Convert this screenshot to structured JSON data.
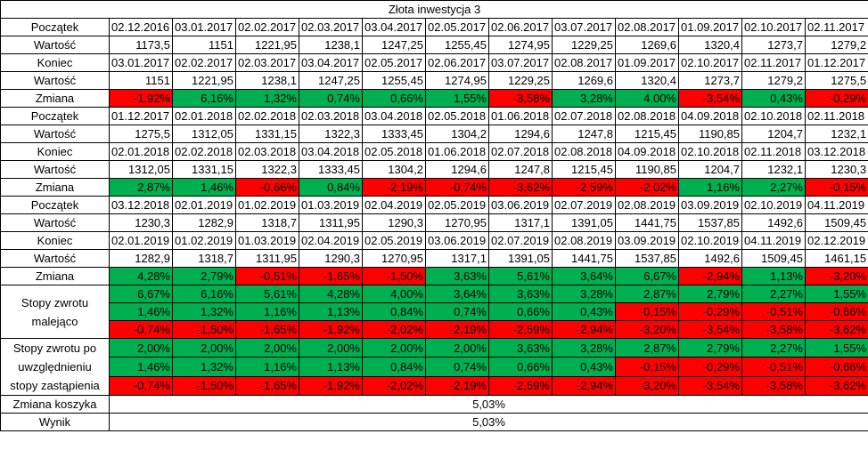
{
  "title": "Złota inwestycja 3",
  "colors": {
    "positive": "#00b050",
    "negative": "#ff0000"
  },
  "labels": {
    "poczatek": "Początek",
    "wartosc": "Wartość",
    "koniec": "Koniec",
    "zmiana": "Zmiana",
    "stopy_malejaco": "Stopy zwrotu malejąco",
    "stopy_zastapienie": "Stopy zwrotu po uwzględnieniu stopy zastąpienia",
    "zmiana_koszyka": "Zmiana koszyka",
    "wynik": "Wynik"
  },
  "blocks": [
    {
      "start": [
        "02.12.2016",
        "03.01.2017",
        "02.02.2017",
        "02.03.2017",
        "03.04.2017",
        "02.05.2017",
        "02.06.2017",
        "03.07.2017",
        "02.08.2017",
        "01.09.2017",
        "02.10.2017",
        "02.11.2017"
      ],
      "start_value": [
        "1173,5",
        "1151",
        "1221,95",
        "1238,1",
        "1247,25",
        "1255,45",
        "1274,95",
        "1229,25",
        "1269,6",
        "1320,4",
        "1273,7",
        "1279,2"
      ],
      "end": [
        "03.01.2017",
        "02.02.2017",
        "02.03.2017",
        "03.04.2017",
        "02.05.2017",
        "02.06.2017",
        "03.07.2017",
        "02.08.2017",
        "01.09.2017",
        "02.10.2017",
        "02.11.2017",
        "01.12.2017"
      ],
      "end_value": [
        "1151",
        "1221,95",
        "1238,1",
        "1247,25",
        "1255,45",
        "1274,95",
        "1229,25",
        "1269,6",
        "1320,4",
        "1273,7",
        "1279,2",
        "1275,5"
      ],
      "change": [
        "-1,92%",
        "6,16%",
        "1,32%",
        "0,74%",
        "0,66%",
        "1,55%",
        "-3,58%",
        "3,28%",
        "4,00%",
        "-3,54%",
        "0,43%",
        "-0,29%"
      ]
    },
    {
      "start": [
        "01.12.2017",
        "02.01.2018",
        "02.02.2018",
        "02.03.2018",
        "03.04.2018",
        "02.05.2018",
        "01.06.2018",
        "02.07.2018",
        "02.08.2018",
        "04.09.2018",
        "02.10.2018",
        "02.11.2018"
      ],
      "start_value": [
        "1275,5",
        "1312,05",
        "1331,15",
        "1322,3",
        "1333,45",
        "1304,2",
        "1294,6",
        "1247,8",
        "1215,45",
        "1190,85",
        "1204,7",
        "1232,1"
      ],
      "end": [
        "02.01.2018",
        "02.02.2018",
        "02.03.2018",
        "03.04.2018",
        "02.05.2018",
        "01.06.2018",
        "02.07.2018",
        "02.08.2018",
        "04.09.2018",
        "02.10.2018",
        "02.11.2018",
        "03.12.2018"
      ],
      "end_value": [
        "1312,05",
        "1331,15",
        "1322,3",
        "1333,45",
        "1304,2",
        "1294,6",
        "1247,8",
        "1215,45",
        "1190,85",
        "1204,7",
        "1232,1",
        "1230,3"
      ],
      "change": [
        "2,87%",
        "1,46%",
        "-0,66%",
        "0,84%",
        "-2,19%",
        "-0,74%",
        "-3,62%",
        "-2,59%",
        "-2,02%",
        "1,16%",
        "2,27%",
        "-0,15%"
      ]
    },
    {
      "start": [
        "03.12.2018",
        "02.01.2019",
        "01.02.2019",
        "01.03.2019",
        "02.04.2019",
        "02.05.2019",
        "03.06.2019",
        "02.07.2019",
        "02.08.2019",
        "03.09.2019",
        "02.10.2019",
        "04.11.2019"
      ],
      "start_value": [
        "1230,3",
        "1282,9",
        "1318,7",
        "1311,95",
        "1290,3",
        "1270,95",
        "1317,1",
        "1391,05",
        "1441,75",
        "1537,85",
        "1492,6",
        "1509,45"
      ],
      "end": [
        "02.01.2019",
        "01.02.2019",
        "01.03.2019",
        "02.04.2019",
        "02.05.2019",
        "03.06.2019",
        "02.07.2019",
        "02.08.2019",
        "03.09.2019",
        "02.10.2019",
        "04.11.2019",
        "02.12.2019"
      ],
      "end_value": [
        "1282,9",
        "1318,7",
        "1311,95",
        "1290,3",
        "1270,95",
        "1317,1",
        "1391,05",
        "1441,75",
        "1537,85",
        "1492,6",
        "1509,45",
        "1461,15"
      ],
      "change": [
        "4,28%",
        "2,79%",
        "-0,51%",
        "-1,65%",
        "-1,50%",
        "3,63%",
        "5,61%",
        "3,64%",
        "6,67%",
        "-2,94%",
        "1,13%",
        "-3,20%"
      ]
    }
  ],
  "sorted_returns": [
    [
      "6,67%",
      "6,16%",
      "5,61%",
      "4,28%",
      "4,00%",
      "3,64%",
      "3,63%",
      "3,28%",
      "2,87%",
      "2,79%",
      "2,27%",
      "1,55%"
    ],
    [
      "1,46%",
      "1,32%",
      "1,16%",
      "1,13%",
      "0,84%",
      "0,74%",
      "0,66%",
      "0,43%",
      "-0,15%",
      "-0,29%",
      "-0,51%",
      "-0,66%"
    ],
    [
      "-0,74%",
      "-1,50%",
      "-1,65%",
      "-1,92%",
      "-2,02%",
      "-2,19%",
      "-2,59%",
      "-2,94%",
      "-3,20%",
      "-3,54%",
      "-3,58%",
      "-3,62%"
    ]
  ],
  "replaced_returns": [
    [
      "2,00%",
      "2,00%",
      "2,00%",
      "2,00%",
      "2,00%",
      "2,00%",
      "3,63%",
      "3,28%",
      "2,87%",
      "2,79%",
      "2,27%",
      "1,55%"
    ],
    [
      "1,46%",
      "1,32%",
      "1,16%",
      "1,13%",
      "0,84%",
      "0,74%",
      "0,66%",
      "0,43%",
      "-0,15%",
      "-0,29%",
      "-0,51%",
      "-0,66%"
    ],
    [
      "-0,74%",
      "-1,50%",
      "-1,65%",
      "-1,92%",
      "-2,02%",
      "-2,19%",
      "-2,59%",
      "-2,94%",
      "-3,20%",
      "-3,54%",
      "-3,58%",
      "-3,62%"
    ]
  ],
  "basket_change": "5,03%",
  "result": "5,03%"
}
